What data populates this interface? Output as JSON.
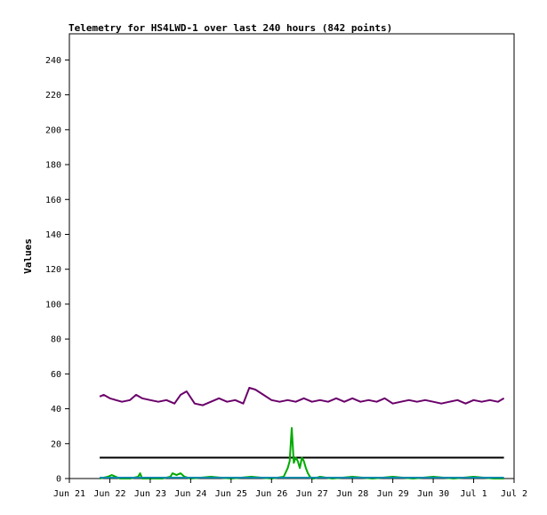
{
  "chart_data": {
    "type": "line",
    "title": "Telemetry for HS4LWD-1 over last 240 hours (842 points)",
    "ylabel": "Values",
    "xlabel": "",
    "ylim": [
      0,
      255
    ],
    "xlim_days": [
      21,
      32
    ],
    "grid": false,
    "yticks": [
      0,
      20,
      40,
      60,
      80,
      100,
      120,
      140,
      160,
      180,
      200,
      220,
      240
    ],
    "xticks": [
      {
        "day": 21,
        "label": "Jun 21"
      },
      {
        "day": 22,
        "label": "Jun 22"
      },
      {
        "day": 23,
        "label": "Jun 23"
      },
      {
        "day": 24,
        "label": "Jun 24"
      },
      {
        "day": 25,
        "label": "Jun 25"
      },
      {
        "day": 26,
        "label": "Jun 26"
      },
      {
        "day": 27,
        "label": "Jun 27"
      },
      {
        "day": 28,
        "label": "Jun 28"
      },
      {
        "day": 29,
        "label": "Jun 29"
      },
      {
        "day": 30,
        "label": "Jun 30"
      },
      {
        "day": 31,
        "label": "Jul 1"
      },
      {
        "day": 32,
        "label": "Jul 2"
      }
    ],
    "series": [
      {
        "color": "#6a006a",
        "x": [
          21.75,
          21.85,
          22.0,
          22.15,
          22.3,
          22.5,
          22.65,
          22.8,
          23.0,
          23.2,
          23.4,
          23.6,
          23.75,
          23.9,
          24.1,
          24.3,
          24.5,
          24.7,
          24.9,
          25.1,
          25.3,
          25.45,
          25.6,
          25.8,
          26.0,
          26.2,
          26.4,
          26.6,
          26.8,
          27.0,
          27.2,
          27.4,
          27.6,
          27.8,
          28.0,
          28.2,
          28.4,
          28.6,
          28.8,
          29.0,
          29.2,
          29.4,
          29.6,
          29.8,
          30.0,
          30.2,
          30.4,
          30.6,
          30.8,
          31.0,
          31.2,
          31.4,
          31.6,
          31.75
        ],
        "y": [
          47,
          48,
          46,
          45,
          44,
          45,
          48,
          46,
          45,
          44,
          45,
          43,
          48,
          50,
          43,
          42,
          44,
          46,
          44,
          45,
          43,
          52,
          51,
          48,
          45,
          44,
          45,
          44,
          46,
          44,
          45,
          44,
          46,
          44,
          46,
          44,
          45,
          44,
          46,
          43,
          44,
          45,
          44,
          45,
          44,
          43,
          44,
          45,
          43,
          45,
          44,
          45,
          44,
          46
        ]
      },
      {
        "color": "#000000",
        "x": [
          21.75,
          31.75
        ],
        "y": [
          12,
          12
        ]
      },
      {
        "color": "#00aa00",
        "x": [
          21.75,
          21.95,
          22.05,
          22.15,
          22.25,
          22.5,
          22.7,
          22.75,
          22.8,
          23.0,
          23.3,
          23.5,
          23.55,
          23.65,
          23.75,
          23.85,
          24.0,
          24.5,
          25.0,
          25.5,
          26.0,
          26.3,
          26.4,
          26.45,
          26.5,
          26.55,
          26.6,
          26.65,
          26.7,
          26.75,
          26.8,
          26.85,
          26.9,
          26.95,
          27.0,
          27.05,
          27.2,
          27.5,
          28.0,
          28.5,
          29.0,
          29.5,
          30.0,
          30.5,
          31.0,
          31.5,
          31.75
        ],
        "y": [
          0,
          1,
          2,
          1,
          0,
          0,
          1,
          3,
          0,
          0,
          0,
          1,
          3,
          2,
          3,
          1,
          0,
          1,
          0,
          1,
          0,
          1,
          6,
          10,
          29,
          9,
          12,
          10,
          6,
          12,
          10,
          6,
          3,
          1,
          0,
          0,
          1,
          0,
          1,
          0,
          1,
          0,
          1,
          0,
          1,
          0,
          0
        ]
      },
      {
        "color": "#0088aa",
        "x": [
          21.75,
          31.75
        ],
        "y": [
          0.5,
          0.5
        ]
      }
    ]
  }
}
